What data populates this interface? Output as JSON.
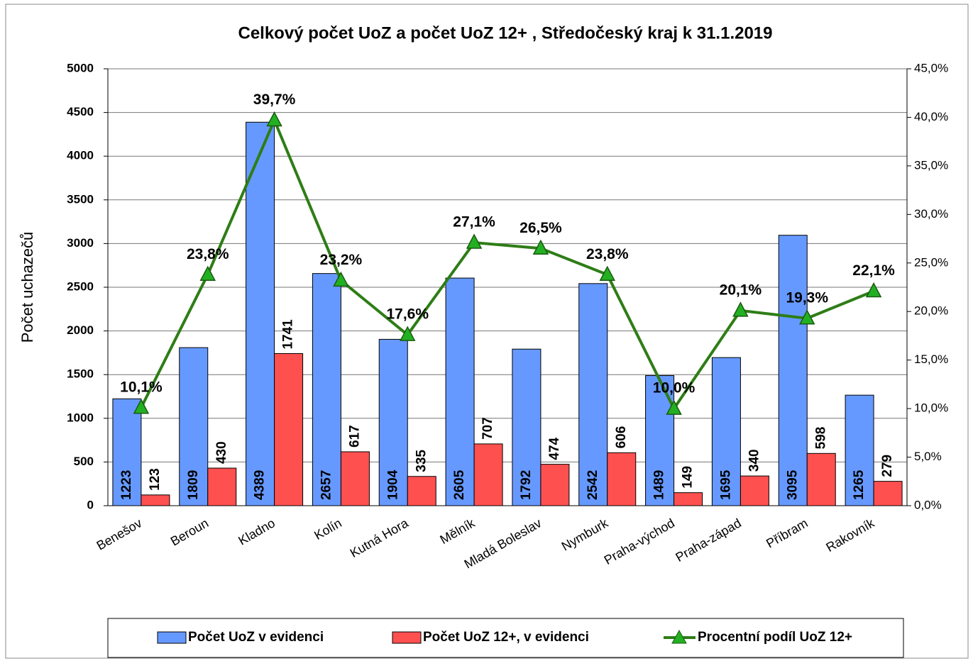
{
  "chart_data": {
    "type": "bar_line",
    "title": "Celkový počet UoZ a počet UoZ 12+ , Středočeský kraj k 31.1.2019",
    "y_label": "Počet uchazečů",
    "categories": [
      "Benešov",
      "Beroun",
      "Kladno",
      "Kolín",
      "Kutná Hora",
      "Mělník",
      "Mladá Boleslav",
      "Nymburk",
      "Praha-východ",
      "Praha-západ",
      "Příbram",
      "Rakovník"
    ],
    "series": [
      {
        "name": "Počet UoZ v evidenci",
        "color": "#6699ff",
        "type": "bar",
        "values": [
          1223,
          1809,
          4389,
          2657,
          1904,
          2605,
          1792,
          2542,
          1489,
          1695,
          3095,
          1265
        ]
      },
      {
        "name": "Počet UoZ 12+, v evidenci",
        "color": "#ff5050",
        "type": "bar",
        "values": [
          123,
          430,
          1741,
          617,
          335,
          707,
          474,
          606,
          149,
          340,
          598,
          279
        ]
      },
      {
        "name": "Procentní podíl UoZ 12+",
        "color": "#2e7d16",
        "type": "line",
        "axis": "y2",
        "values": [
          10.1,
          23.8,
          39.7,
          23.2,
          17.6,
          27.1,
          26.5,
          23.8,
          10.0,
          20.1,
          19.3,
          22.1
        ],
        "value_labels": [
          "10,1%",
          "23,8%",
          "39,7%",
          "23,2%",
          "17,6%",
          "27,1%",
          "26,5%",
          "23,8%",
          "10,0%",
          "20,1%",
          "19,3%",
          "22,1%"
        ]
      }
    ],
    "ylim": [
      0,
      5000
    ],
    "yticks": [
      0,
      500,
      1000,
      1500,
      2000,
      2500,
      3000,
      3500,
      4000,
      4500,
      5000
    ],
    "y2lim": [
      0,
      45
    ],
    "y2ticks": [
      {
        "value": 0,
        "label": "0,0%"
      },
      {
        "value": 5,
        "label": "5,0%"
      },
      {
        "value": 10,
        "label": "10,0%"
      },
      {
        "value": 15,
        "label": "15,0%"
      },
      {
        "value": 20,
        "label": "20,0%"
      },
      {
        "value": 25,
        "label": "25,0%"
      },
      {
        "value": 30,
        "label": "30,0%"
      },
      {
        "value": 35,
        "label": "35,0%"
      },
      {
        "value": 40,
        "label": "40,0%"
      },
      {
        "value": 45,
        "label": "45,0%"
      }
    ],
    "grid": true,
    "legend": "bottom"
  }
}
